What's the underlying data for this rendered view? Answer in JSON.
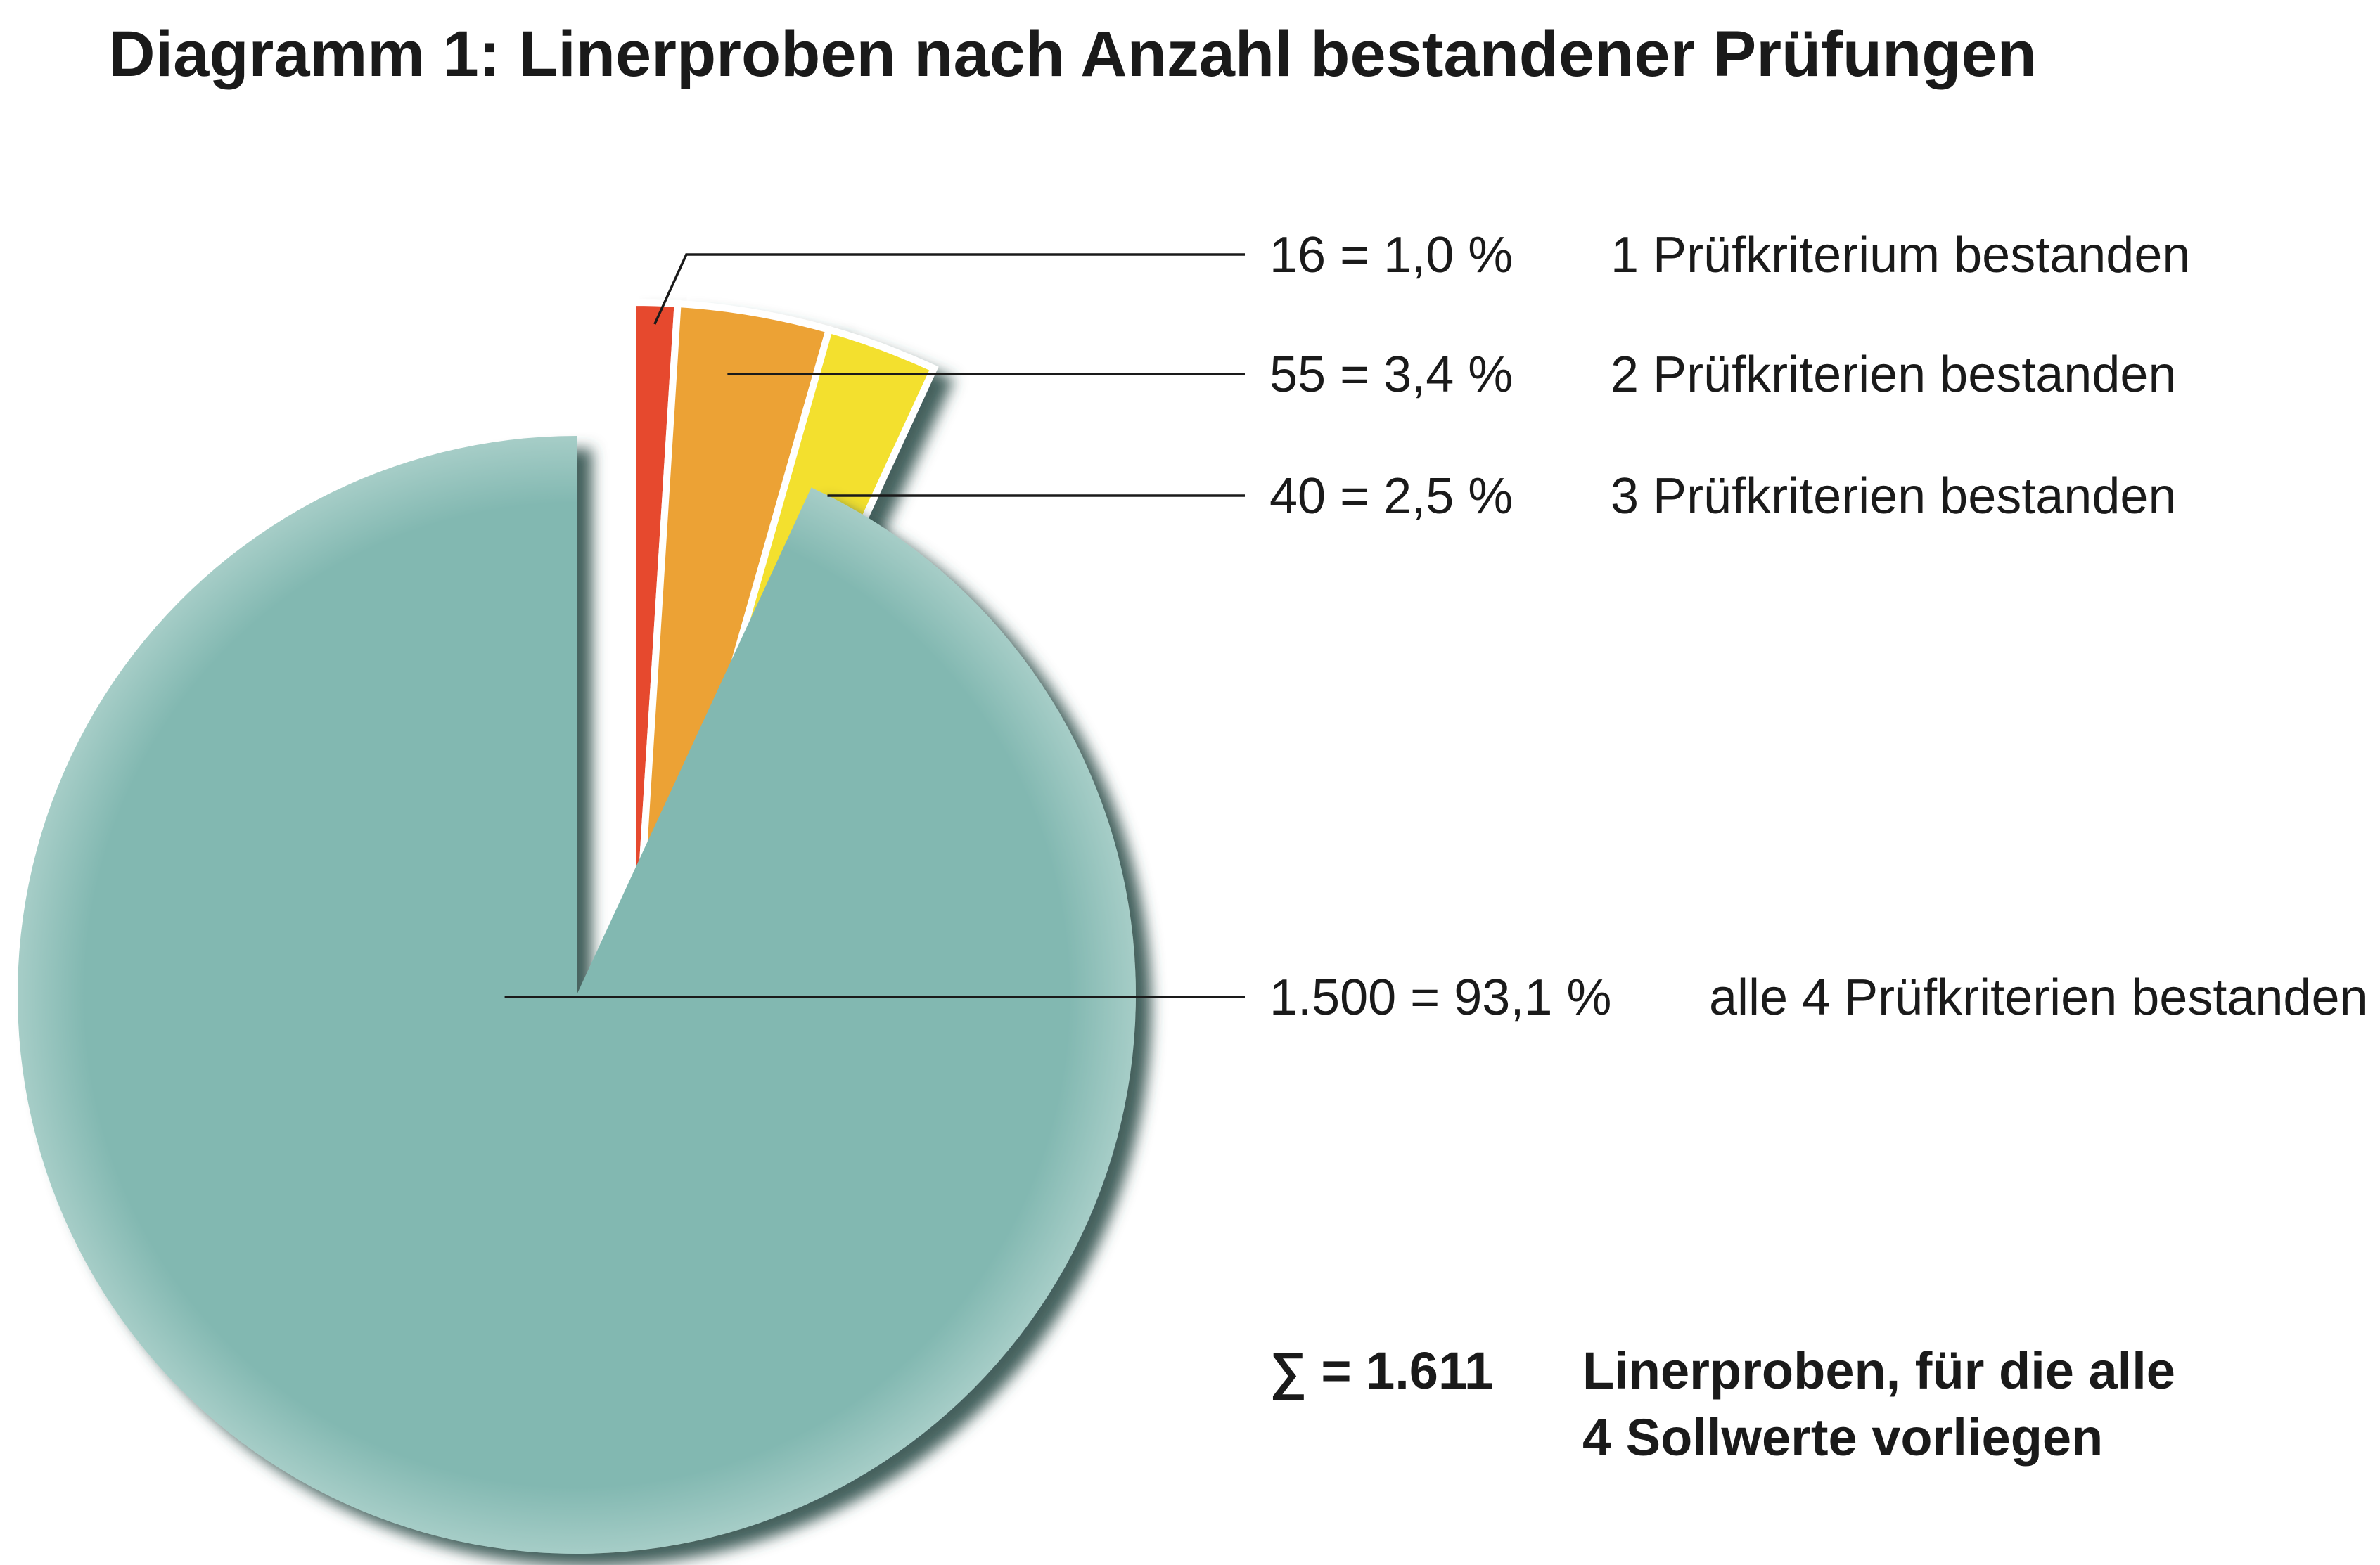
{
  "chart_data": {
    "type": "pie",
    "title": "Diagramm 1: Linerproben nach Anzahl bestandener Prüfungen",
    "slices": [
      {
        "value": 16,
        "percent": 1.0,
        "value_label": "16 = 1,0 %",
        "name": "1 Prüfkriterium bestanden",
        "color": "#e64a2e"
      },
      {
        "value": 55,
        "percent": 3.4,
        "value_label": "55 = 3,4 %",
        "name": "2 Prüfkriterien bestanden",
        "color": "#eca236"
      },
      {
        "value": 40,
        "percent": 2.5,
        "value_label": "40 = 2,5 %",
        "name": "3 Prüfkriterien bestanden",
        "color": "#f3e02f"
      },
      {
        "value": 1500,
        "percent": 93.1,
        "value_label": "1.500 = 93,1 %",
        "name": "alle 4 Prüfkriterien bestanden",
        "color": "#82b8b1"
      }
    ],
    "total": {
      "value": 1611,
      "label": "∑ = 1.611",
      "text_line1": "Linerproben, für die alle",
      "text_line2": "4 Sollwerte vorliegen"
    },
    "legend": "right",
    "start_angle_deg": 0,
    "direction": "clockwise"
  }
}
